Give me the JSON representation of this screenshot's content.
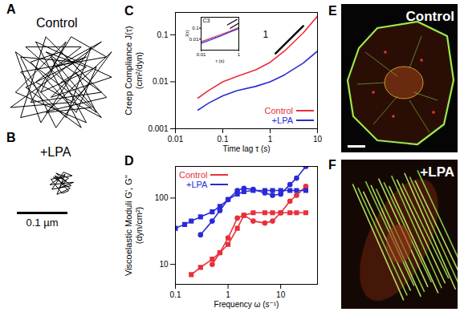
{
  "chart_data": [
    {
      "panel_label": "C",
      "type": "line",
      "log": true,
      "x_label": "Time lag τ (s)",
      "y_label": "Creep Compliance J(τ) (cm²/dyn)",
      "xlim": [
        0.01,
        10
      ],
      "ylim": [
        0.001,
        0.3
      ],
      "xticks": [
        0.01,
        0.1,
        1,
        10
      ],
      "yticks": [
        0.001,
        0.01,
        0.1
      ],
      "legend": "lower right",
      "x": [
        0.03,
        0.05,
        0.1,
        0.2,
        0.5,
        1,
        2,
        5,
        10
      ],
      "series": [
        {
          "name": "Control",
          "color": "#e8303a",
          "values": [
            0.0045,
            0.0065,
            0.01,
            0.013,
            0.018,
            0.026,
            0.045,
            0.11,
            0.25
          ]
        },
        {
          "name": "+LPA",
          "color": "#2a2ad8",
          "values": [
            0.0025,
            0.0035,
            0.005,
            0.0065,
            0.008,
            0.01,
            0.014,
            0.025,
            0.045
          ]
        }
      ],
      "annotations": [
        {
          "x": [
            1.3,
            5
          ],
          "y": [
            0.04,
            0.154
          ],
          "color": "#000000",
          "text": "1",
          "text_at": [
            0.8,
            0.1
          ]
        }
      ],
      "inset": {
        "title": "C3",
        "log": true,
        "x_label": "τ (s)",
        "y_label": "J(τ)",
        "xlim": [
          0.01,
          1
        ],
        "ylim": [
          0.001,
          1
        ],
        "xticks": [
          0.01,
          1
        ],
        "yticks": [
          0.01,
          0.1
        ],
        "x": [
          0.01,
          0.03,
          0.1,
          0.3,
          1
        ],
        "series": [
          {
            "color": "#e8303a",
            "values": [
              0.006,
              0.012,
              0.025,
              0.05,
              0.12
            ]
          },
          {
            "color": "#8a3ab8",
            "values": [
              0.005,
              0.01,
              0.02,
              0.045,
              0.1
            ]
          },
          {
            "color": "#2a2ad8",
            "values": [
              0.004,
              0.008,
              0.018,
              0.04,
              0.09
            ]
          }
        ],
        "annotations": [
          {
            "x": [
              0.25,
              0.8
            ],
            "y": [
              0.2,
              0.64
            ],
            "color": "#000000"
          },
          {
            "x": [
              0.35,
              0.9
            ],
            "y": [
              0.1,
              0.26
            ],
            "color": "#000000"
          }
        ]
      }
    },
    {
      "panel_label": "D",
      "type": "line",
      "log": true,
      "x_label": "Frequency ω (s⁻¹)",
      "y_label": "Viscoelastic Moduli G', G'' (dyn/cm²)",
      "xlim": [
        0.1,
        50
      ],
      "ylim": [
        5,
        300
      ],
      "xticks": [
        0.1,
        1,
        10
      ],
      "yticks": [
        10,
        100
      ],
      "legend": "upper left",
      "x": [
        0.1,
        0.15,
        0.2,
        0.3,
        0.5,
        0.7,
        1,
        1.5,
        2,
        3,
        5,
        7,
        10,
        15,
        20,
        30
      ],
      "series": [
        {
          "name": "Control",
          "color": "#e8303a",
          "marker": "square",
          "values": [
            null,
            null,
            7,
            9,
            12,
            15,
            20,
            35,
            55,
            60,
            60,
            60,
            60,
            60,
            60,
            60
          ]
        },
        {
          "name": "Control",
          "color": "#e8303a",
          "marker": "circle",
          "values": [
            null,
            null,
            null,
            null,
            10,
            15,
            25,
            50,
            55,
            45,
            42,
            45,
            60,
            90,
            110,
            150
          ]
        },
        {
          "name": "+LPA",
          "color": "#2a2ad8",
          "marker": "square",
          "values": [
            35,
            40,
            45,
            52,
            62,
            75,
            95,
            115,
            125,
            130,
            130,
            130,
            130,
            130,
            130,
            130
          ]
        },
        {
          "name": "+LPA",
          "color": "#2a2ad8",
          "marker": "circle",
          "values": [
            null,
            null,
            null,
            28,
            45,
            65,
            95,
            130,
            140,
            135,
            120,
            110,
            115,
            160,
            200,
            300
          ]
        }
      ]
    }
  ],
  "trajectories": [
    {
      "panel_label": "A",
      "title": "Control",
      "color": "#000000",
      "x": [
        0,
        0.05,
        -0.03,
        0.08,
        -0.06,
        0.02,
        0.09,
        -0.08,
        0.01,
        0.06,
        -0.04,
        -0.09,
        0.07,
        0.03,
        -0.02,
        0.1,
        -0.05,
        0.04,
        -0.07,
        0.05,
        -0.01,
        0.08,
        -0.1,
        0.02,
        0.06,
        -0.03,
        -0.08,
        0.09,
        0,
        -0.06,
        0.03,
        0.07,
        -0.04,
        0.01,
        -0.09,
        0.05,
        -0.02,
        0.08,
        -0.05,
        0.04,
        -0.07,
        0.02,
        0.06,
        -0.03,
        0.1,
        -0.01,
        -0.08,
        0.03
      ],
      "y": [
        0,
        0.03,
        0.06,
        -0.02,
        -0.04,
        0.09,
        0.05,
        0.02,
        -0.07,
        0.07,
        -0.08,
        0.06,
        -0.06,
        0.02,
        -0.03,
        0.01,
        0.08,
        -0.09,
        -0.01,
        0.05,
        0.03,
        0.08,
        -0.05,
        -0.04,
        0,
        0.09,
        -0.07,
        -0.03,
        0.06,
        0.04,
        -0.06,
        0.03,
        -0.02,
        0.08,
        -0.02,
        -0.08,
        0.05,
        -0.07,
        0,
        0.07,
        0.07,
        -0.01,
        -0.05,
        -0.06,
        0.06,
        -0.09,
        0.05,
        0.04
      ]
    },
    {
      "panel_label": "B",
      "title": "+LPA",
      "color": "#000000",
      "x": [
        0,
        0.015,
        -0.01,
        0.02,
        -0.018,
        0.005,
        0.022,
        -0.02,
        0.002,
        0.015,
        -0.012,
        0.01,
        -0.005,
        0.025,
        -0.022,
        0.008,
        -0.008,
        0.018,
        -0.015,
        0.003
      ],
      "y": [
        0,
        0.01,
        0.02,
        -0.005,
        -0.012,
        0.022,
        0.015,
        0.008,
        -0.02,
        -0.015,
        0.015,
        0.005,
        -0.01,
        0.002,
        -0.003,
        0.018,
        -0.022,
        -0.01,
        0.012,
        0.01
      ]
    }
  ],
  "scale_bar": {
    "length": 0.1,
    "label": "0.1 µm"
  },
  "images": [
    {
      "panel_label": "E",
      "title": "Control"
    },
    {
      "panel_label": "F",
      "title": "+LPA"
    }
  ]
}
